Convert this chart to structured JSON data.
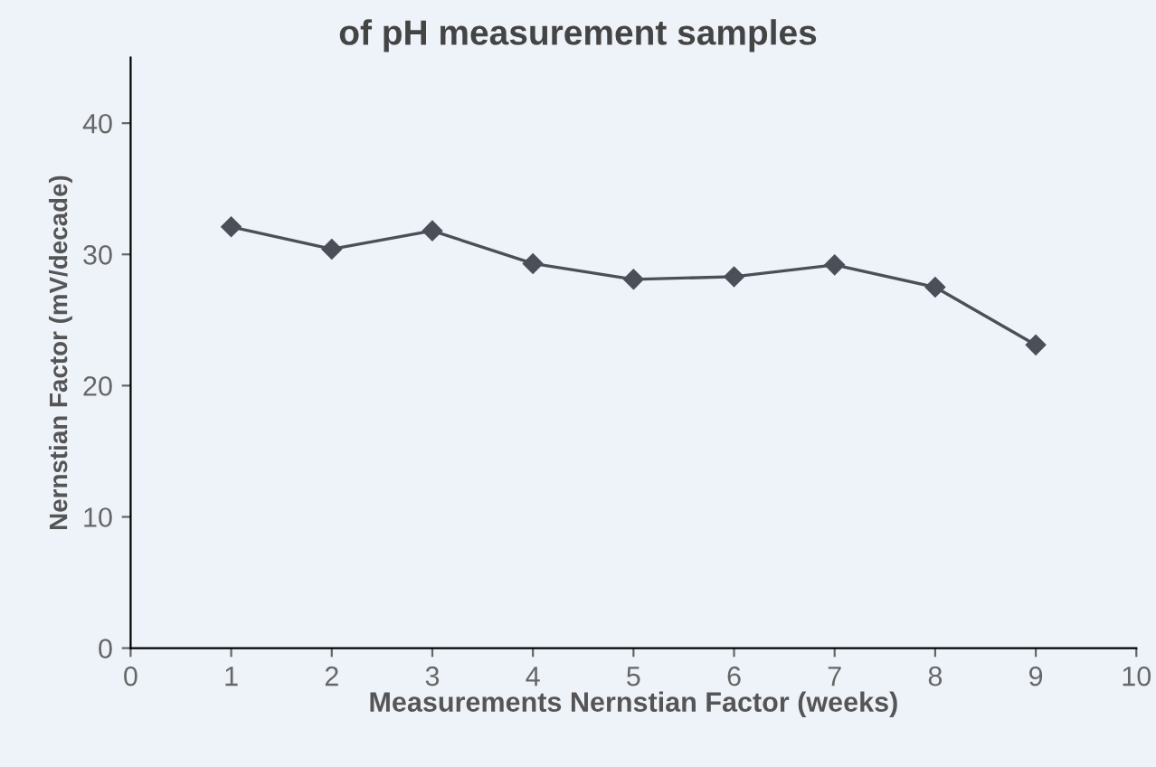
{
  "chart_data": {
    "type": "line",
    "title": "of pH measurement samples",
    "xlabel": "Measurements Nernstian Factor (weeks)",
    "ylabel": "Nernstian Factor (mV/decade)",
    "x": [
      1,
      2,
      3,
      4,
      5,
      6,
      7,
      8,
      9
    ],
    "series": [
      {
        "color": "#4a4f58",
        "values": [
          32.1,
          30.4,
          31.8,
          29.3,
          28.1,
          28.3,
          29.2,
          27.5,
          23.1
        ]
      }
    ],
    "xlim": [
      0,
      10
    ],
    "xticks": [
      0,
      1,
      2,
      3,
      4,
      5,
      6,
      7,
      8,
      9,
      10
    ],
    "ylim": [
      0,
      45
    ],
    "yticks": [
      0,
      10,
      20,
      30,
      40
    ],
    "marker": "diamond",
    "line_style": "solid",
    "grid": false,
    "legend": false
  }
}
